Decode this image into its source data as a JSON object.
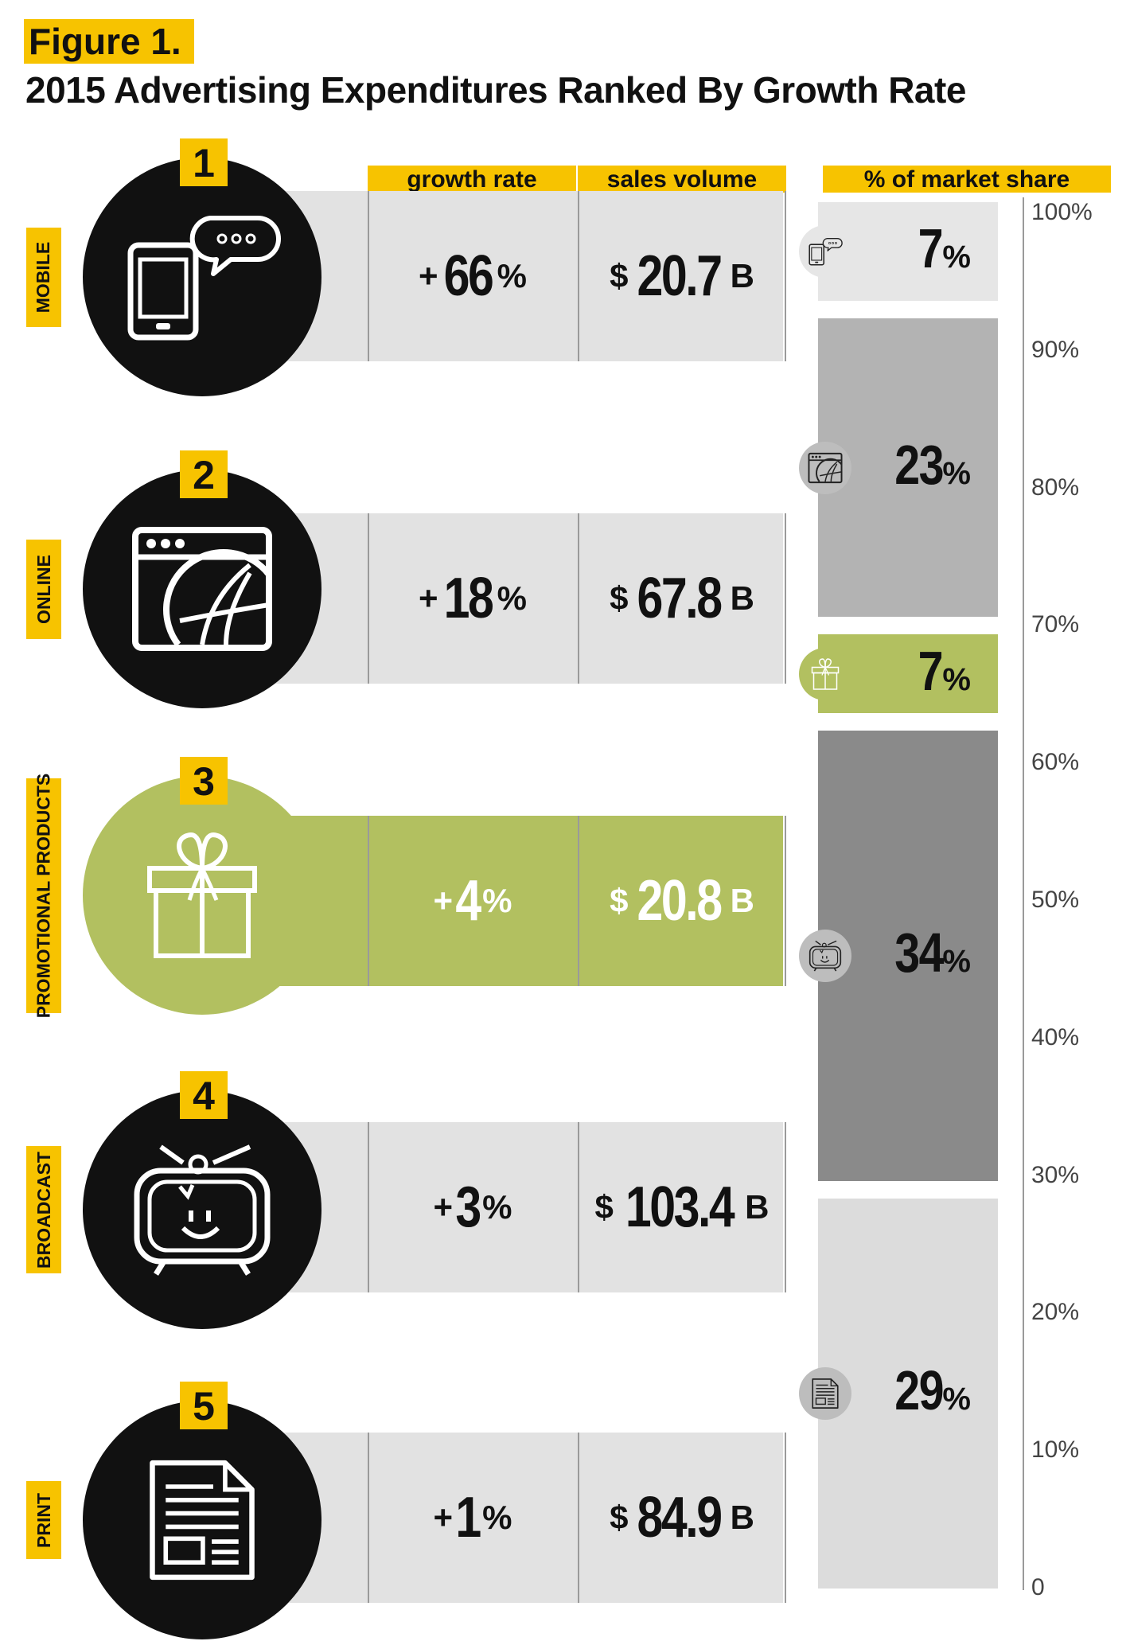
{
  "figure_label": "Figure 1.",
  "title": "2015 Advertising Expenditures Ranked By Growth Rate",
  "headers": {
    "growth_rate": "growth rate",
    "sales_volume": "sales volume",
    "market_share": "% of market share"
  },
  "colors": {
    "accent": "#f7c300",
    "black": "#111111",
    "green": "#b2c060",
    "light_gray": "#e2e2e2"
  },
  "rows": [
    {
      "rank": "1",
      "label": "MOBILE",
      "growth_num": "66",
      "sales_num": "20.7",
      "icon": "smartphone-chat-icon"
    },
    {
      "rank": "2",
      "label": "ONLINE",
      "growth_num": "18",
      "sales_num": "67.8",
      "icon": "browser-globe-icon"
    },
    {
      "rank": "3",
      "label": "PROMOTIONAL PRODUCTS",
      "growth_num": "4",
      "sales_num": "20.8",
      "icon": "gift-icon"
    },
    {
      "rank": "4",
      "label": "BROADCAST",
      "growth_num": "3",
      "sales_num": "103.4",
      "icon": "tv-icon"
    },
    {
      "rank": "5",
      "label": "PRINT",
      "growth_num": "1",
      "sales_num": "84.9",
      "icon": "newspaper-icon"
    }
  ],
  "symbols": {
    "plus": "+",
    "percent": "%",
    "dollar": "$",
    "billion": "B"
  },
  "chart_data": {
    "type": "table",
    "title": "2015 Advertising Expenditures Ranked By Growth Rate",
    "categories": [
      "MOBILE",
      "ONLINE",
      "PROMOTIONAL PRODUCTS",
      "BROADCAST",
      "PRINT"
    ],
    "series": [
      {
        "name": "growth rate",
        "values": [
          66,
          18,
          4,
          3,
          1
        ]
      },
      {
        "name": "sales volume",
        "values": [
          20.7,
          67.8,
          20.8,
          103.4,
          84.9
        ]
      },
      {
        "name": "% of market share",
        "values": [
          7,
          23,
          7,
          34,
          29
        ]
      }
    ],
    "stacked_bar": {
      "type": "bar",
      "segments_top_to_bottom": [
        {
          "category": "MOBILE",
          "share": 7,
          "color": "#e6e6e6",
          "icon": "smartphone-chat-icon"
        },
        {
          "category": "ONLINE",
          "share": 23,
          "color": "#b3b3b3",
          "icon": "browser-globe-icon"
        },
        {
          "category": "PROMOTIONAL PRODUCTS",
          "share": 7,
          "color": "#b2c060",
          "icon": "gift-icon"
        },
        {
          "category": "BROADCAST",
          "share": 34,
          "color": "#8a8a8a",
          "icon": "tv-icon"
        },
        {
          "category": "PRINT",
          "share": 29,
          "color": "#dcdcdc",
          "icon": "newspaper-icon"
        }
      ],
      "ylim": [
        0,
        100
      ],
      "yticks": [
        "0",
        "10%",
        "20%",
        "30%",
        "40%",
        "50%",
        "60%",
        "70%",
        "80%",
        "90%",
        "100%"
      ]
    }
  }
}
